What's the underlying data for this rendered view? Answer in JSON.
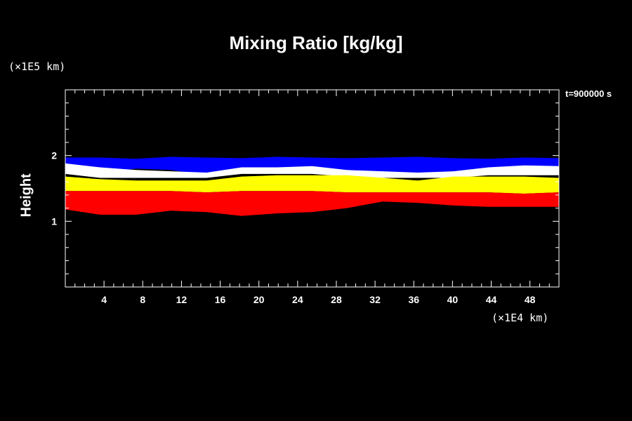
{
  "chart_data": {
    "type": "heatmap",
    "title": "Mixing Ratio [kg/kg]",
    "ylabel": "Height",
    "y_unit": "(×1E5 km)",
    "x_unit": "(×1E4 km)",
    "timestamp": "t=900000 s",
    "xlim": [
      0,
      51
    ],
    "ylim": [
      0,
      3
    ],
    "x_ticks": [
      4,
      8,
      12,
      16,
      20,
      24,
      28,
      32,
      36,
      40,
      44,
      48
    ],
    "y_ticks": [
      1,
      2
    ],
    "color_bands": [
      {
        "color": "#0000ff",
        "top": [
          1.97,
          1.97,
          1.95,
          1.98,
          1.97,
          1.96,
          1.98,
          1.97,
          1.96,
          1.97,
          1.98,
          1.96,
          1.95,
          1.97,
          1.96
        ],
        "bottom": [
          1.78,
          1.74,
          1.8,
          1.78,
          1.7,
          1.78,
          1.8,
          1.82,
          1.74,
          1.7,
          1.72,
          1.68,
          1.78,
          1.76,
          1.7
        ]
      },
      {
        "color": "#ffffff",
        "top": [
          1.88,
          1.82,
          1.78,
          1.76,
          1.74,
          1.82,
          1.82,
          1.84,
          1.78,
          1.76,
          1.74,
          1.76,
          1.82,
          1.85,
          1.84
        ],
        "bottom": [
          1.72,
          1.66,
          1.66,
          1.66,
          1.66,
          1.72,
          1.72,
          1.72,
          1.68,
          1.66,
          1.66,
          1.66,
          1.7,
          1.7,
          1.7
        ]
      },
      {
        "color": "#ffff00",
        "top": [
          1.68,
          1.64,
          1.62,
          1.62,
          1.62,
          1.68,
          1.7,
          1.7,
          1.7,
          1.66,
          1.62,
          1.68,
          1.68,
          1.68,
          1.66
        ],
        "bottom": [
          1.46,
          1.46,
          1.46,
          1.46,
          1.44,
          1.46,
          1.46,
          1.46,
          1.44,
          1.44,
          1.44,
          1.44,
          1.44,
          1.42,
          1.44
        ]
      },
      {
        "color": "#ff0000",
        "top": [
          1.46,
          1.46,
          1.46,
          1.46,
          1.44,
          1.46,
          1.46,
          1.46,
          1.44,
          1.44,
          1.44,
          1.44,
          1.44,
          1.42,
          1.44
        ],
        "bottom": [
          1.18,
          1.1,
          1.1,
          1.16,
          1.14,
          1.08,
          1.12,
          1.14,
          1.2,
          1.3,
          1.28,
          1.24,
          1.22,
          1.22,
          1.22
        ]
      }
    ],
    "band_x": [
      0,
      3.6,
      7.3,
      10.9,
      14.6,
      18.2,
      21.9,
      25.5,
      29.1,
      32.8,
      36.4,
      40.1,
      43.7,
      47.4,
      51
    ]
  }
}
